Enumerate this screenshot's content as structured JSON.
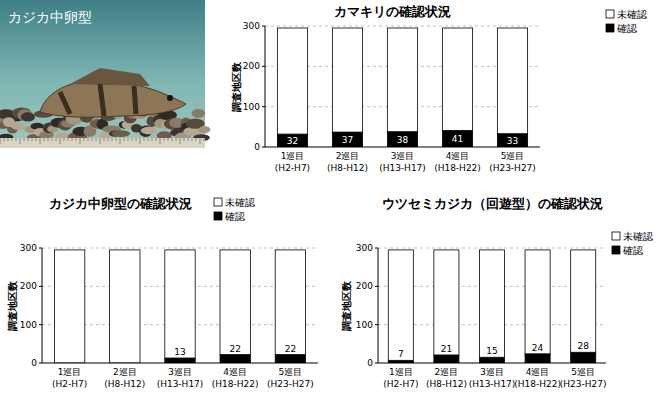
{
  "photo": {
    "label": "カジカ中卵型"
  },
  "chart_data": [
    {
      "type": "bar",
      "title": "カマキリの確認状況",
      "y_label": "調査地区数",
      "categories": [
        "1巡目 (H2-H7)",
        "2巡目 (H8-H12)",
        "3巡目 (H13-H17)",
        "4巡目 (H18-H22)",
        "5巡目 (H23-H27)"
      ],
      "series": [
        {
          "name": "確認",
          "color": "#000000",
          "values": [
            32,
            37,
            38,
            41,
            33
          ],
          "data_labels": true
        },
        {
          "name": "未確認",
          "color": "#ffffff",
          "values": [
            263,
            258,
            257,
            254,
            262
          ],
          "data_labels": false
        }
      ],
      "stacked": true,
      "ylim": [
        0,
        300
      ],
      "yticks": [
        0,
        100,
        200,
        300
      ],
      "grid": true,
      "legend": "upper right"
    },
    {
      "type": "bar",
      "title": "カジカ中卵型の確認状況",
      "y_label": "調査地区数",
      "categories": [
        "1巡目 (H2-H7)",
        "2巡目 (H8-H12)",
        "3巡目 (H13-H17)",
        "4巡目 (H18-H22)",
        "5巡目 (H23-H27)"
      ],
      "series": [
        {
          "name": "確認",
          "color": "#000000",
          "values": [
            0,
            0,
            13,
            22,
            22
          ],
          "value_labels": [
            null,
            null,
            "13",
            "22",
            "22"
          ],
          "data_labels": true
        },
        {
          "name": "未確認",
          "color": "#ffffff",
          "values": [
            295,
            295,
            282,
            273,
            273
          ],
          "data_labels": false
        }
      ],
      "stacked": true,
      "ylim": [
        0,
        300
      ],
      "yticks": [
        0,
        100,
        200,
        300
      ],
      "grid": true,
      "legend": "upper right"
    },
    {
      "type": "bar",
      "title": "ウツセミカジカ（回遊型）の確認状況",
      "y_label": "調査地区数",
      "categories": [
        "1巡目 (H2-H7)",
        "2巡目 (H8-H12)",
        "3巡目 (H13-H17)",
        "4巡目 (H18-H22)",
        "5巡目 (H23-H27)"
      ],
      "series": [
        {
          "name": "確認",
          "color": "#000000",
          "values": [
            7,
            21,
            15,
            24,
            28
          ],
          "data_labels": true
        },
        {
          "name": "未確認",
          "color": "#ffffff",
          "values": [
            288,
            274,
            280,
            271,
            267
          ],
          "data_labels": false
        }
      ],
      "stacked": true,
      "ylim": [
        0,
        300
      ],
      "yticks": [
        0,
        100,
        200,
        300
      ],
      "grid": true,
      "legend": "upper right"
    }
  ]
}
